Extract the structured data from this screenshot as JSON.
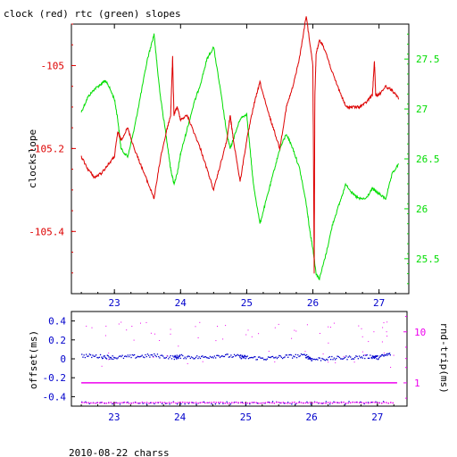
{
  "figure": {
    "title": "clock (red) rtc (green) slopes",
    "footer": "2010-08-22 charss"
  },
  "colors": {
    "clock": "#dd0000",
    "rtc": "#00dd00",
    "offset": "#0000cc",
    "rnd_trip": "#ee00ee",
    "frame": "#000000",
    "background": "#ffffff"
  },
  "chart_data": [
    {
      "type": "line",
      "title": "clock (red) rtc (green) slopes",
      "xlabel": "",
      "xlim": [
        22.35,
        27.45
      ],
      "x_ticks": [
        23,
        24,
        25,
        26,
        27
      ],
      "x_tick_labels": [
        "23",
        "24",
        "25",
        "26",
        "27"
      ],
      "y_left": {
        "label": "clockslope",
        "lim": [
          -105.55,
          -104.9
        ],
        "ticks": [
          -105,
          -105.2,
          -105.4
        ],
        "tick_labels": [
          "-105",
          "-105.2",
          "-105.4"
        ],
        "color": "#dd0000"
      },
      "y_right": {
        "label": "",
        "lim": [
          25.15,
          27.85
        ],
        "ticks": [
          25.5,
          26,
          26.5,
          27,
          27.5
        ],
        "tick_labels": [
          "25.5",
          "26",
          "26.5",
          "27",
          "27.5"
        ],
        "color": "#00dd00"
      },
      "series": [
        {
          "name": "clock",
          "axis": "left",
          "color": "#dd0000",
          "x": [
            22.5,
            22.6,
            22.7,
            22.8,
            22.9,
            23.0,
            23.05,
            23.1,
            23.2,
            23.3,
            23.4,
            23.5,
            23.6,
            23.7,
            23.8,
            23.85,
            23.88,
            23.9,
            23.92,
            23.95,
            24.0,
            24.1,
            24.2,
            24.3,
            24.4,
            24.5,
            24.6,
            24.7,
            24.75,
            24.8,
            24.9,
            25.0,
            25.1,
            25.2,
            25.3,
            25.4,
            25.5,
            25.6,
            25.7,
            25.8,
            25.9,
            26.0,
            26.02,
            26.03,
            26.05,
            26.1,
            26.15,
            26.2,
            26.3,
            26.4,
            26.5,
            26.6,
            26.7,
            26.8,
            26.9,
            26.93,
            26.95,
            27.0,
            27.1,
            27.2,
            27.3
          ],
          "y": [
            -105.22,
            -105.25,
            -105.27,
            -105.26,
            -105.24,
            -105.22,
            -105.16,
            -105.18,
            -105.15,
            -105.2,
            -105.24,
            -105.28,
            -105.32,
            -105.22,
            -105.15,
            -105.12,
            -104.98,
            -105.12,
            -105.11,
            -105.1,
            -105.13,
            -105.12,
            -105.16,
            -105.2,
            -105.25,
            -105.3,
            -105.24,
            -105.18,
            -105.12,
            -105.18,
            -105.28,
            -105.18,
            -105.1,
            -105.04,
            -105.1,
            -105.15,
            -105.2,
            -105.1,
            -105.05,
            -104.98,
            -104.88,
            -105.0,
            -105.5,
            -105.07,
            -104.97,
            -104.94,
            -104.95,
            -104.97,
            -105.02,
            -105.06,
            -105.1,
            -105.1,
            -105.1,
            -105.09,
            -105.07,
            -104.99,
            -105.07,
            -105.07,
            -105.05,
            -105.06,
            -105.08
          ]
        },
        {
          "name": "rtc",
          "axis": "right",
          "color": "#00dd00",
          "x": [
            22.5,
            22.6,
            22.7,
            22.8,
            22.85,
            22.9,
            23.0,
            23.05,
            23.1,
            23.2,
            23.3,
            23.4,
            23.5,
            23.6,
            23.65,
            23.7,
            23.8,
            23.85,
            23.9,
            23.95,
            24.0,
            24.1,
            24.2,
            24.3,
            24.4,
            24.5,
            24.6,
            24.7,
            24.75,
            24.8,
            24.9,
            25.0,
            25.05,
            25.1,
            25.2,
            25.3,
            25.4,
            25.5,
            25.6,
            25.7,
            25.8,
            25.9,
            25.95,
            26.0,
            26.05,
            26.1,
            26.2,
            26.3,
            26.4,
            26.5,
            26.6,
            26.7,
            26.8,
            26.9,
            27.0,
            27.1,
            27.2,
            27.3
          ],
          "y": [
            26.97,
            27.12,
            27.2,
            27.25,
            27.28,
            27.25,
            27.1,
            26.9,
            26.6,
            26.52,
            26.8,
            27.15,
            27.5,
            27.75,
            27.4,
            27.1,
            26.65,
            26.4,
            26.25,
            26.35,
            26.55,
            26.8,
            27.05,
            27.25,
            27.5,
            27.62,
            27.2,
            26.75,
            26.6,
            26.7,
            26.9,
            26.95,
            26.6,
            26.25,
            25.85,
            26.1,
            26.35,
            26.6,
            26.75,
            26.6,
            26.4,
            26.05,
            25.8,
            25.6,
            25.35,
            25.3,
            25.55,
            25.85,
            26.05,
            26.25,
            26.15,
            26.1,
            26.1,
            26.2,
            26.15,
            26.1,
            26.35,
            26.45
          ]
        }
      ]
    },
    {
      "type": "scatter",
      "xlim": [
        22.35,
        27.45
      ],
      "x_ticks": [
        23,
        24,
        25,
        26,
        27
      ],
      "x_tick_labels": [
        "23",
        "24",
        "25",
        "26",
        "27"
      ],
      "y_left": {
        "label": "offset(ms)",
        "lim": [
          -0.5,
          0.5
        ],
        "ticks": [
          0.4,
          0.2,
          0,
          -0.2,
          -0.4
        ],
        "tick_labels": [
          "0.4",
          "0.2",
          "0",
          "-0.2",
          "-0.4"
        ],
        "color": "#0000cc"
      },
      "y_right": {
        "label": "rnd-trip(ms)",
        "scale": "log",
        "lim": [
          0.35,
          25
        ],
        "ticks": [
          1,
          10
        ],
        "tick_labels": [
          "1",
          "10"
        ],
        "color": "#ee00ee"
      },
      "series": [
        {
          "name": "offset",
          "axis": "left",
          "color": "#0000cc",
          "x": [
            22.5,
            22.8,
            23.0,
            23.3,
            23.6,
            23.9,
            24.0,
            24.3,
            24.6,
            24.9,
            25.0,
            25.3,
            25.6,
            25.9,
            26.0,
            26.3,
            26.6,
            26.9,
            27.0,
            27.2
          ],
          "y": [
            0.04,
            0.03,
            0.02,
            0.03,
            0.04,
            0.02,
            0.03,
            0.02,
            0.04,
            0.03,
            0.02,
            0.01,
            0.03,
            0.04,
            0.0,
            0.01,
            0.02,
            0.03,
            0.02,
            0.06
          ]
        },
        {
          "name": "rnd-trip",
          "axis": "right",
          "color": "#ee00ee",
          "x": [
            22.5,
            27.3
          ],
          "y": [
            1.0,
            1.0
          ]
        }
      ]
    }
  ]
}
